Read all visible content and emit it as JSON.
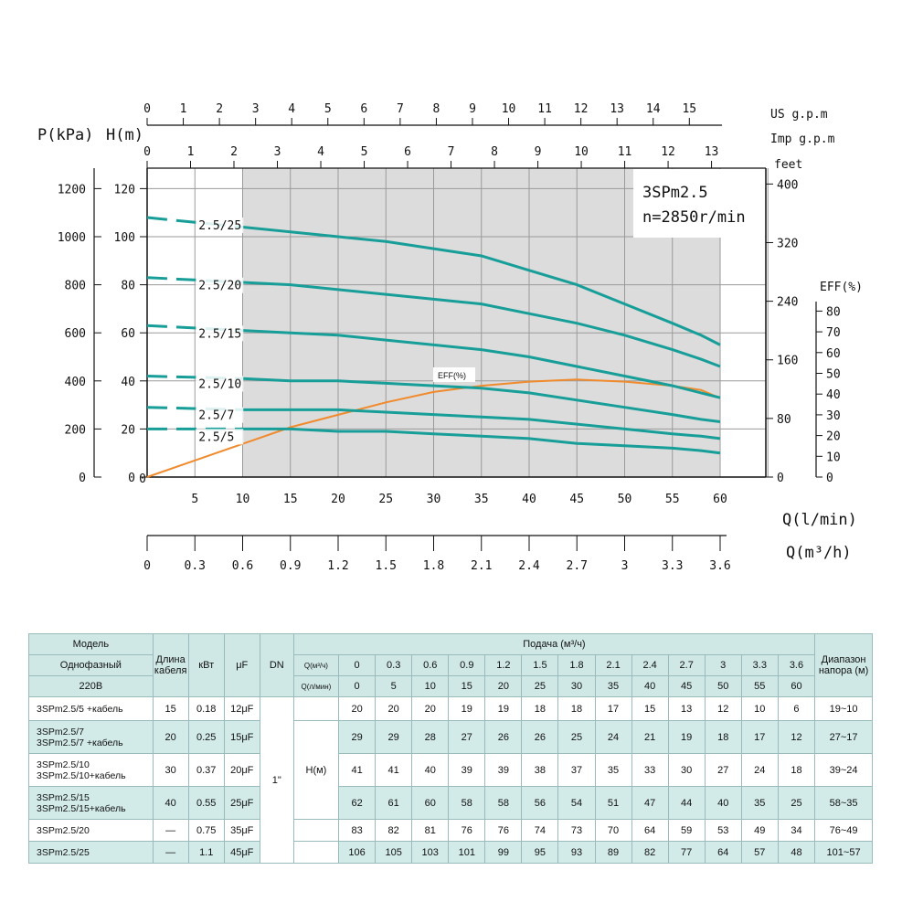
{
  "chart_data": {
    "type": "line",
    "title": "3SPm2.5",
    "subtitle": "n=2850r/min",
    "axes": {
      "left_p": {
        "label": "P(kPa)",
        "ticks": [
          0,
          200,
          400,
          600,
          800,
          1000,
          1200
        ],
        "range": [
          0,
          1300
        ]
      },
      "left_h": {
        "label": "H(m)",
        "ticks": [
          0,
          20,
          40,
          60,
          80,
          100,
          120
        ],
        "range": [
          0,
          130
        ]
      },
      "right_feet": {
        "label": "feet",
        "ticks": [
          0,
          80,
          160,
          240,
          320,
          400
        ]
      },
      "right_eff": {
        "label": "EFF(%)",
        "ticks": [
          0,
          10,
          20,
          30,
          40,
          50,
          60,
          70,
          80
        ]
      },
      "bottom_lmin": {
        "label": "Q(l/min)",
        "ticks": [
          5,
          10,
          15,
          20,
          25,
          30,
          35,
          40,
          45,
          50,
          55,
          60
        ]
      },
      "bottom_m3h": {
        "label": "Q(m³/h)",
        "ticks": [
          "0",
          "0.3",
          "0.6",
          "0.9",
          "1.2",
          "1.5",
          "1.8",
          "2.1",
          "2.4",
          "2.7",
          "3",
          "3.3",
          "3.6"
        ]
      },
      "top_us": {
        "label": "US g.p.m",
        "ticks": [
          0,
          1,
          2,
          3,
          4,
          5,
          6,
          7,
          8,
          9,
          10,
          11,
          12,
          13,
          14,
          15
        ]
      },
      "top_imp": {
        "label": "Imp g.p.m",
        "ticks": [
          0,
          1,
          2,
          3,
          4,
          5,
          6,
          7,
          8,
          9,
          10,
          11,
          12,
          13
        ]
      }
    },
    "x": [
      0,
      10,
      15,
      20,
      25,
      30,
      35,
      40,
      45,
      50,
      55,
      58,
      60
    ],
    "series": [
      {
        "name": "2.5/25",
        "label_x": 10,
        "values": [
          108,
          104,
          102,
          100,
          98,
          95,
          92,
          86,
          80,
          72,
          64,
          59,
          55
        ]
      },
      {
        "name": "2.5/20",
        "label_x": 10,
        "values": [
          83,
          81,
          80,
          78,
          76,
          74,
          72,
          68,
          64,
          59,
          53,
          49,
          46
        ]
      },
      {
        "name": "2.5/15",
        "label_x": 10,
        "values": [
          63,
          61,
          60,
          59,
          57,
          55,
          53,
          50,
          46,
          42,
          38,
          35,
          33
        ]
      },
      {
        "name": "2.5/10",
        "label_x": 10,
        "values": [
          42,
          41,
          40,
          40,
          39,
          38,
          37,
          35,
          32,
          29,
          26,
          24,
          23
        ]
      },
      {
        "name": "2.5/7",
        "label_x": 10,
        "values": [
          29,
          28,
          28,
          28,
          27,
          26,
          25,
          24,
          22,
          20,
          18,
          17,
          16
        ]
      },
      {
        "name": "2.5/5",
        "label_x": 10,
        "values": [
          20,
          20,
          20,
          19,
          19,
          18,
          17,
          16,
          14,
          13,
          12,
          11,
          10
        ]
      }
    ],
    "efficiency": {
      "name": "EFF(%)",
      "x": [
        0,
        5,
        10,
        15,
        20,
        25,
        30,
        35,
        40,
        45,
        50,
        55,
        58,
        60
      ],
      "values": [
        0,
        8,
        16,
        24,
        30,
        36,
        41,
        44,
        46,
        47,
        46,
        44,
        42,
        38
      ]
    }
  },
  "table": {
    "head": {
      "model": "Модель",
      "phase": "Однофазный",
      "voltage": "220В",
      "cable": "Длина кабеля",
      "kw": "кВт",
      "uf": "μF",
      "dn": "DN",
      "flow": "Подача (м³/ч)",
      "q_m3h": "Q(м³/ч)",
      "q_lmin": "Q(л/мин)",
      "range": "Диапазон напора (м)",
      "m3h": [
        "0",
        "0.3",
        "0.6",
        "0.9",
        "1.2",
        "1.5",
        "1.8",
        "2.1",
        "2.4",
        "2.7",
        "3",
        "3.3",
        "3.6"
      ],
      "lmin": [
        "0",
        "5",
        "10",
        "15",
        "20",
        "25",
        "30",
        "35",
        "40",
        "45",
        "50",
        "55",
        "60"
      ]
    },
    "dn_value": "1\"",
    "h_label": "H(м)",
    "rows": [
      {
        "model": "3SPm2.5/5  +кабель",
        "cable": "15",
        "kw": "0.18",
        "uf": "12μF",
        "h": [
          "20",
          "20",
          "20",
          "19",
          "19",
          "18",
          "18",
          "17",
          "15",
          "13",
          "12",
          "10",
          "6"
        ],
        "range": "19~10"
      },
      {
        "model": "3SPm2.5/7\n3SPm2.5/7  +кабель",
        "cable": "20",
        "kw": "0.25",
        "uf": "15μF",
        "h": [
          "29",
          "29",
          "28",
          "27",
          "26",
          "26",
          "25",
          "24",
          "21",
          "19",
          "18",
          "17",
          "12"
        ],
        "range": "27~17"
      },
      {
        "model": "3SPm2.5/10\n3SPm2.5/10+кабель",
        "cable": "30",
        "kw": "0.37",
        "uf": "20μF",
        "h": [
          "41",
          "41",
          "40",
          "39",
          "39",
          "38",
          "37",
          "35",
          "33",
          "30",
          "27",
          "24",
          "18"
        ],
        "range": "39~24"
      },
      {
        "model": "3SPm2.5/15\n3SPm2.5/15+кабель",
        "cable": "40",
        "kw": "0.55",
        "uf": "25μF",
        "h": [
          "62",
          "61",
          "60",
          "58",
          "58",
          "56",
          "54",
          "51",
          "47",
          "44",
          "40",
          "35",
          "25"
        ],
        "range": "58~35"
      },
      {
        "model": "3SPm2.5/20",
        "cable": "—",
        "kw": "0.75",
        "uf": "35μF",
        "h": [
          "83",
          "82",
          "81",
          "76",
          "76",
          "74",
          "73",
          "70",
          "64",
          "59",
          "53",
          "49",
          "34"
        ],
        "range": "76~49"
      },
      {
        "model": "3SPm2.5/25",
        "cable": "—",
        "kw": "1.1",
        "uf": "45μF",
        "h": [
          "106",
          "105",
          "103",
          "101",
          "99",
          "95",
          "93",
          "89",
          "82",
          "77",
          "64",
          "57",
          "48"
        ],
        "range": "101~57"
      }
    ]
  },
  "colors": {
    "curve": "#179e98",
    "eff": "#f08a2c",
    "shade": "#dcdcdc",
    "table_head": "#cfe8e6",
    "table_row": "#d2ebe9"
  }
}
